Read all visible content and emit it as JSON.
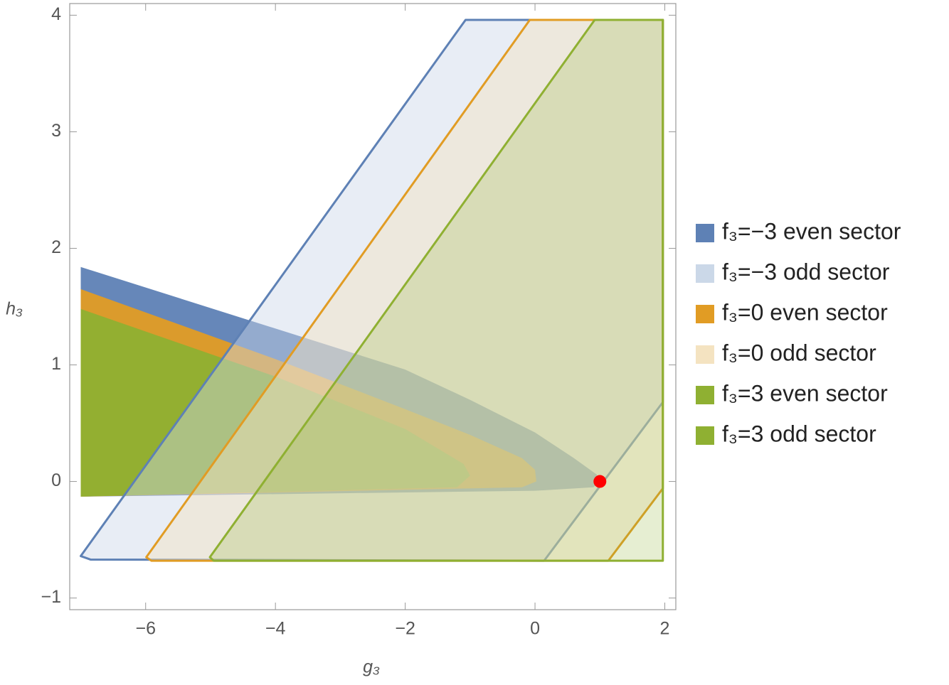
{
  "chart_data": {
    "type": "region",
    "xlabel": "g₃",
    "ylabel": "h₃",
    "xlim": [
      -7.17,
      2.17
    ],
    "ylim": [
      -1.1,
      4.1
    ],
    "xticks": [
      {
        "value": -6,
        "label": "−6"
      },
      {
        "value": -4,
        "label": "−4"
      },
      {
        "value": -2,
        "label": "−2"
      },
      0,
      2
    ],
    "yticks": [
      {
        "value": -1,
        "label": "−1"
      },
      0,
      1,
      2,
      3,
      4
    ],
    "legend": "right",
    "series": [
      {
        "name": "f₃=−3 even sector",
        "color": "#5e81b5",
        "kind": "even",
        "fill_opacity": 0.95,
        "x": [
          -7,
          -2,
          -1,
          0,
          0.6,
          0.95,
          1,
          0.9,
          0,
          -7
        ],
        "y": [
          1.84,
          0.96,
          0.7,
          0.42,
          0.2,
          0.06,
          0,
          -0.05,
          -0.08,
          -0.13
        ]
      },
      {
        "name": "f₃=−3 odd sector",
        "color": "#cbd8e8",
        "edge_color": "#5e81b5",
        "kind": "odd",
        "fill_opacity": 0.45,
        "x": [
          -7,
          -1.07,
          1.97,
          1.97,
          0.14,
          -6.85
        ],
        "y": [
          -0.64,
          3.96,
          3.96,
          0.68,
          -0.68,
          -0.67
        ]
      },
      {
        "name": "f₃=0 even sector",
        "color": "#e19c24",
        "kind": "even",
        "fill_opacity": 0.95,
        "x": [
          -7,
          -4,
          -2,
          -1,
          -0.2,
          0,
          0.02,
          -0.2,
          -7
        ],
        "y": [
          1.65,
          1.05,
          0.62,
          0.4,
          0.2,
          0.1,
          0,
          -0.05,
          -0.13
        ]
      },
      {
        "name": "f₃=0 odd sector",
        "color": "#f4e3c1",
        "edge_color": "#e19c24",
        "kind": "odd",
        "fill_opacity": 0.45,
        "x": [
          -5.99,
          -0.08,
          1.97,
          1.97,
          1.13,
          -5.91
        ],
        "y": [
          -0.65,
          3.96,
          3.96,
          -0.06,
          -0.68,
          -0.68
        ]
      },
      {
        "name": "f₃=3 even sector",
        "color": "#8fb032",
        "kind": "even",
        "fill_opacity": 0.95,
        "x": [
          -7,
          -4,
          -2,
          -1.1,
          -1,
          -1.2,
          -7
        ],
        "y": [
          1.48,
          0.9,
          0.45,
          0.15,
          0.05,
          -0.05,
          -0.13
        ]
      },
      {
        "name": "f₃=3 odd sector",
        "color": "#8fb032",
        "edge_color": "#8fb032",
        "kind": "odd",
        "fill_opacity": 0.22,
        "x": [
          -5.01,
          0.92,
          1.97,
          1.97,
          -4.95
        ],
        "y": [
          -0.65,
          3.96,
          3.96,
          -0.68,
          -0.68
        ]
      }
    ],
    "points": [
      {
        "x": 1,
        "y": 0,
        "color": "#ff0000"
      }
    ]
  }
}
